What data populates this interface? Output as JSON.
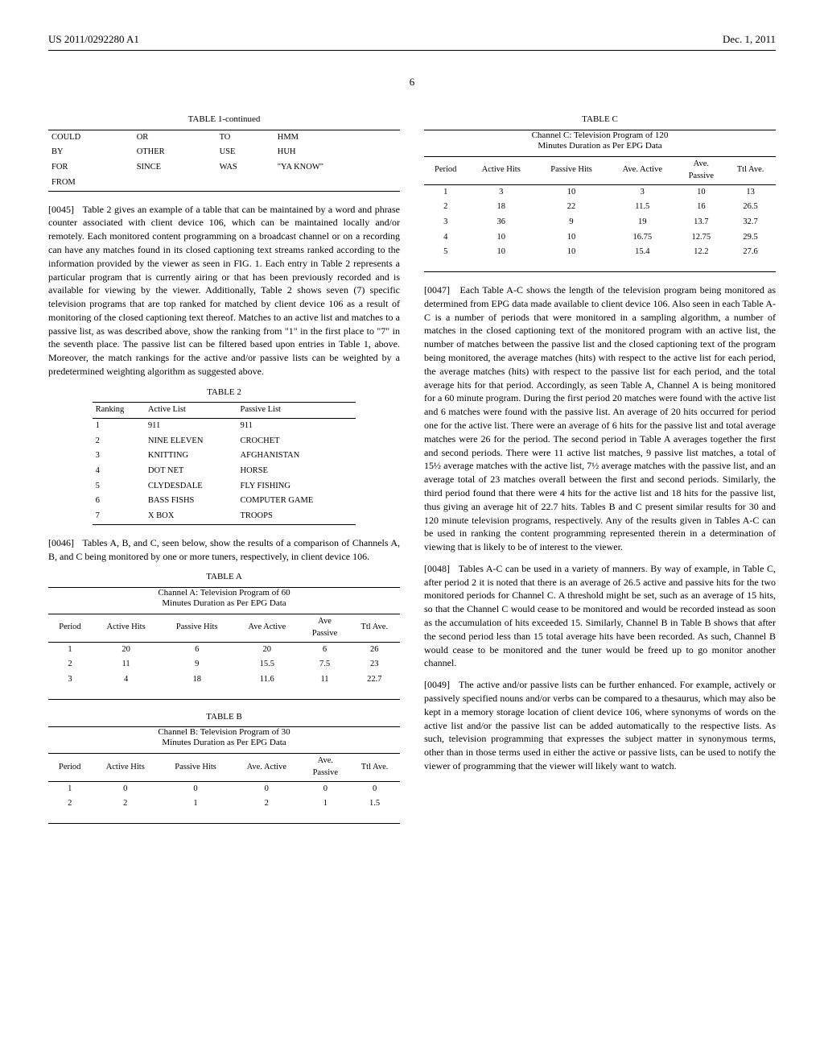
{
  "header": {
    "pub_number": "US 2011/0292280 A1",
    "date": "Dec. 1, 2011"
  },
  "page_number": "6",
  "left_col": {
    "table1_caption": "TABLE 1-continued",
    "table1_rows": [
      [
        "COULD",
        "OR",
        "TO",
        "HMM"
      ],
      [
        "BY",
        "OTHER",
        "USE",
        "HUH"
      ],
      [
        "FOR",
        "SINCE",
        "WAS",
        "\"YA KNOW\""
      ],
      [
        "FROM",
        "",
        "",
        ""
      ]
    ],
    "para45_num": "[0045]",
    "para45": "Table 2 gives an example of a table that can be maintained by a word and phrase counter associated with client device 106, which can be maintained locally and/or remotely. Each monitored content programming on a broadcast channel or on a recording can have any matches found in its closed captioning text streams ranked according to the information provided by the viewer as seen in FIG. 1. Each entry in Table 2 represents a particular program that is currently airing or that has been previously recorded and is available for viewing by the viewer. Additionally, Table 2 shows seven (7) specific television programs that are top ranked for matched by client device 106 as a result of monitoring of the closed captioning text thereof. Matches to an active list and matches to a passive list, as was described above, show the ranking from \"1\" in the first place to \"7\" in the seventh place. The passive list can be filtered based upon entries in Table 1, above. Moreover, the match rankings for the active and/or passive lists can be weighted by a predetermined weighting algorithm as suggested above.",
    "table2_caption": "TABLE 2",
    "table2_headers": [
      "Ranking",
      "Active List",
      "Passive List"
    ],
    "table2_rows": [
      [
        "1",
        "911",
        "911"
      ],
      [
        "2",
        "NINE ELEVEN",
        "CROCHET"
      ],
      [
        "3",
        "KNITTING",
        "AFGHANISTAN"
      ],
      [
        "4",
        "DOT NET",
        "HORSE"
      ],
      [
        "5",
        "CLYDESDALE",
        "FLY FISHING"
      ],
      [
        "6",
        "BASS FISHS",
        "COMPUTER GAME"
      ],
      [
        "7",
        "X BOX",
        "TROOPS"
      ]
    ],
    "para46_num": "[0046]",
    "para46": "Tables A, B, and C, seen below, show the results of a comparison of Channels A, B, and C being monitored by one or more tuners, respectively, in client device 106.",
    "tableA_caption": "TABLE A",
    "tableA_subtitle": "Channel A: Television Program of 60\nMinutes Duration as Per EPG Data",
    "tableA_headers": [
      "Period",
      "Active Hits",
      "Passive Hits",
      "Ave Active",
      "Ave\nPassive",
      "Ttl Ave."
    ],
    "tableA_rows": [
      [
        "1",
        "20",
        "6",
        "20",
        "6",
        "26"
      ],
      [
        "2",
        "11",
        "9",
        "15.5",
        "7.5",
        "23"
      ],
      [
        "3",
        "4",
        "18",
        "11.6",
        "11",
        "22.7"
      ]
    ],
    "tableB_caption": "TABLE B",
    "tableB_subtitle": "Channel B: Television Program of 30\nMinutes Duration as Per EPG Data",
    "tableB_headers": [
      "Period",
      "Active Hits",
      "Passive Hits",
      "Ave. Active",
      "Ave.\nPassive",
      "Ttl Ave."
    ],
    "tableB_rows": [
      [
        "1",
        "0",
        "0",
        "0",
        "0",
        "0"
      ],
      [
        "2",
        "2",
        "1",
        "2",
        "1",
        "1.5"
      ]
    ]
  },
  "right_col": {
    "tableC_caption": "TABLE C",
    "tableC_subtitle": "Channel C: Television Program of 120\nMinutes Duration as Per EPG Data",
    "tableC_headers": [
      "Period",
      "Active Hits",
      "Passive Hits",
      "Ave. Active",
      "Ave.\nPassive",
      "Ttl Ave."
    ],
    "tableC_rows": [
      [
        "1",
        "3",
        "10",
        "3",
        "10",
        "13"
      ],
      [
        "2",
        "18",
        "22",
        "11.5",
        "16",
        "26.5"
      ],
      [
        "3",
        "36",
        "9",
        "19",
        "13.7",
        "32.7"
      ],
      [
        "4",
        "10",
        "10",
        "16.75",
        "12.75",
        "29.5"
      ],
      [
        "5",
        "10",
        "10",
        "15.4",
        "12.2",
        "27.6"
      ]
    ],
    "para47_num": "[0047]",
    "para47": "Each Table A-C shows the length of the television program being monitored as determined from EPG data made available to client device 106. Also seen in each Table A-C is a number of periods that were monitored in a sampling algorithm, a number of matches in the closed captioning text of the monitored program with an active list, the number of matches between the passive list and the closed captioning text of the program being monitored, the average matches (hits) with respect to the active list for each period, the average matches (hits) with respect to the passive list for each period, and the total average hits for that period. Accordingly, as seen Table A, Channel A is being monitored for a 60 minute program. During the first period 20 matches were found with the active list and 6 matches were found with the passive list. An average of 20 hits occurred for period one for the active list. There were an average of 6 hits for the passive list and total average matches were 26 for the period. The second period in Table A averages together the first and second periods. There were 11 active list matches, 9 passive list matches, a total of 15½ average matches with the active list, 7½ average matches with the passive list, and an average total of 23 matches overall between the first and second periods. Similarly, the third period found that there were 4 hits for the active list and 18 hits for the passive list, thus giving an average hit of 22.7 hits. Tables B and C present similar results for 30 and 120 minute television programs, respectively. Any of the results given in Tables A-C can be used in ranking the content programming represented therein in a determination of viewing that is likely to be of interest to the viewer.",
    "para48_num": "[0048]",
    "para48": "Tables A-C can be used in a variety of manners. By way of example, in Table C, after period 2 it is noted that there is an average of 26.5 active and passive hits for the two monitored periods for Channel C. A threshold might be set, such as an average of 15 hits, so that the Channel C would cease to be monitored and would be recorded instead as soon as the accumulation of hits exceeded 15. Similarly, Channel B in Table B shows that after the second period less than 15 total average hits have been recorded. As such, Channel B would cease to be monitored and the tuner would be freed up to go monitor another channel.",
    "para49_num": "[0049]",
    "para49": "The active and/or passive lists can be further enhanced. For example, actively or passively specified nouns and/or verbs can be compared to a thesaurus, which may also be kept in a memory storage location of client device 106, where synonyms of words on the active list and/or the passive list can be added automatically to the respective lists. As such, television programming that expresses the subject matter in synonymous terms, other than in those terms used in either the active or passive lists, can be used to notify the viewer of programming that the viewer will likely want to watch."
  }
}
